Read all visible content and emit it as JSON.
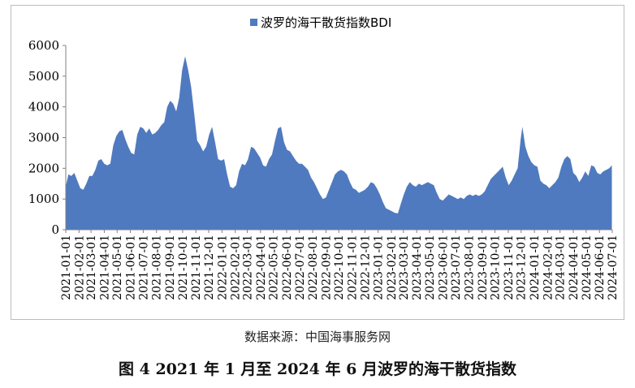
{
  "source_text": "数据来源：中国海事服务网",
  "caption": "图 4  2021 年 1 月至 2024 年 6 月波罗的海干散货指数",
  "colors": {
    "area": "#4f7ac0",
    "axis": "#808080",
    "text": "#000000"
  },
  "chart_data": {
    "type": "area",
    "ylim": [
      0,
      6000
    ],
    "yticks": [
      0,
      1000,
      2000,
      3000,
      4000,
      5000,
      6000
    ],
    "xlabel": "",
    "ylabel": "",
    "legend": {
      "position": "top-center",
      "entries": [
        "波罗的海干散货指数BDI"
      ]
    },
    "x_tick_labels": [
      "2021-01-01",
      "2021-02-01",
      "2021-03-01",
      "2021-04-01",
      "2021-05-01",
      "2021-06-01",
      "2021-07-01",
      "2021-08-01",
      "2021-09-01",
      "2021-10-01",
      "2021-11-01",
      "2021-12-01",
      "2022-01-01",
      "2022-02-01",
      "2022-03-01",
      "2022-04-01",
      "2022-05-01",
      "2022-06-01",
      "2022-07-01",
      "2022-08-01",
      "2022-09-01",
      "2022-10-01",
      "2022-11-01",
      "2022-12-01",
      "2023-01-01",
      "2023-02-01",
      "2023-03-01",
      "2023-04-01",
      "2023-05-01",
      "2023-06-01",
      "2023-07-01",
      "2023-08-01",
      "2023-09-01",
      "2023-10-01",
      "2023-11-01",
      "2023-12-01",
      "2024-01-01",
      "2024-02-01",
      "2024-03-01",
      "2024-04-01",
      "2024-05-01",
      "2024-06-01",
      "2024-07-01"
    ],
    "series": [
      {
        "name": "波罗的海干散货指数BDI",
        "color": "#4f7ac0",
        "points": [
          [
            "2021-01-01",
            1400
          ],
          [
            "2021-01-07",
            1800
          ],
          [
            "2021-01-14",
            1750
          ],
          [
            "2021-01-21",
            1850
          ],
          [
            "2021-01-28",
            1600
          ],
          [
            "2021-02-04",
            1350
          ],
          [
            "2021-02-11",
            1300
          ],
          [
            "2021-02-18",
            1500
          ],
          [
            "2021-02-25",
            1750
          ],
          [
            "2021-03-04",
            1750
          ],
          [
            "2021-03-11",
            1950
          ],
          [
            "2021-03-18",
            2250
          ],
          [
            "2021-03-25",
            2300
          ],
          [
            "2021-04-01",
            2150
          ],
          [
            "2021-04-08",
            2100
          ],
          [
            "2021-04-15",
            2150
          ],
          [
            "2021-04-22",
            2750
          ],
          [
            "2021-04-29",
            3050
          ],
          [
            "2021-05-06",
            3200
          ],
          [
            "2021-05-13",
            3250
          ],
          [
            "2021-05-20",
            2950
          ],
          [
            "2021-05-27",
            2700
          ],
          [
            "2021-06-03",
            2500
          ],
          [
            "2021-06-10",
            2450
          ],
          [
            "2021-06-17",
            3100
          ],
          [
            "2021-06-24",
            3350
          ],
          [
            "2021-07-01",
            3300
          ],
          [
            "2021-07-08",
            3150
          ],
          [
            "2021-07-15",
            3300
          ],
          [
            "2021-07-22",
            3100
          ],
          [
            "2021-07-29",
            3150
          ],
          [
            "2021-08-05",
            3250
          ],
          [
            "2021-08-12",
            3400
          ],
          [
            "2021-08-19",
            3500
          ],
          [
            "2021-08-26",
            4000
          ],
          [
            "2021-09-02",
            4200
          ],
          [
            "2021-09-09",
            4100
          ],
          [
            "2021-09-16",
            3850
          ],
          [
            "2021-09-23",
            4300
          ],
          [
            "2021-09-30",
            5200
          ],
          [
            "2021-10-07",
            5650
          ],
          [
            "2021-10-14",
            5200
          ],
          [
            "2021-10-21",
            4650
          ],
          [
            "2021-10-28",
            3800
          ],
          [
            "2021-11-04",
            2900
          ],
          [
            "2021-11-11",
            2750
          ],
          [
            "2021-11-18",
            2550
          ],
          [
            "2021-11-25",
            2700
          ],
          [
            "2021-12-02",
            3100
          ],
          [
            "2021-12-09",
            3350
          ],
          [
            "2021-12-16",
            2850
          ],
          [
            "2021-12-23",
            2300
          ],
          [
            "2021-12-30",
            2250
          ],
          [
            "2022-01-06",
            2300
          ],
          [
            "2022-01-13",
            1800
          ],
          [
            "2022-01-20",
            1400
          ],
          [
            "2022-01-27",
            1350
          ],
          [
            "2022-02-03",
            1450
          ],
          [
            "2022-02-10",
            1900
          ],
          [
            "2022-02-17",
            2150
          ],
          [
            "2022-02-24",
            2100
          ],
          [
            "2022-03-03",
            2300
          ],
          [
            "2022-03-10",
            2700
          ],
          [
            "2022-03-17",
            2650
          ],
          [
            "2022-03-24",
            2500
          ],
          [
            "2022-03-31",
            2350
          ],
          [
            "2022-04-07",
            2100
          ],
          [
            "2022-04-14",
            2050
          ],
          [
            "2022-04-21",
            2300
          ],
          [
            "2022-04-28",
            2450
          ],
          [
            "2022-05-05",
            2900
          ],
          [
            "2022-05-12",
            3300
          ],
          [
            "2022-05-19",
            3350
          ],
          [
            "2022-05-26",
            2850
          ],
          [
            "2022-06-02",
            2600
          ],
          [
            "2022-06-09",
            2550
          ],
          [
            "2022-06-16",
            2400
          ],
          [
            "2022-06-23",
            2250
          ],
          [
            "2022-06-30",
            2150
          ],
          [
            "2022-07-07",
            2150
          ],
          [
            "2022-07-14",
            2050
          ],
          [
            "2022-07-21",
            1950
          ],
          [
            "2022-07-28",
            1700
          ],
          [
            "2022-08-04",
            1550
          ],
          [
            "2022-08-11",
            1350
          ],
          [
            "2022-08-18",
            1150
          ],
          [
            "2022-08-25",
            1000
          ],
          [
            "2022-09-01",
            1050
          ],
          [
            "2022-09-08",
            1300
          ],
          [
            "2022-09-15",
            1550
          ],
          [
            "2022-09-22",
            1800
          ],
          [
            "2022-09-29",
            1900
          ],
          [
            "2022-10-06",
            1950
          ],
          [
            "2022-10-13",
            1900
          ],
          [
            "2022-10-20",
            1800
          ],
          [
            "2022-10-27",
            1550
          ],
          [
            "2022-11-03",
            1350
          ],
          [
            "2022-11-10",
            1300
          ],
          [
            "2022-11-17",
            1200
          ],
          [
            "2022-11-24",
            1250
          ],
          [
            "2022-12-01",
            1300
          ],
          [
            "2022-12-08",
            1400
          ],
          [
            "2022-12-15",
            1550
          ],
          [
            "2022-12-22",
            1500
          ],
          [
            "2022-12-29",
            1350
          ],
          [
            "2023-01-05",
            1150
          ],
          [
            "2023-01-12",
            900
          ],
          [
            "2023-01-19",
            700
          ],
          [
            "2023-01-26",
            650
          ],
          [
            "2023-02-02",
            600
          ],
          [
            "2023-02-09",
            550
          ],
          [
            "2023-02-16",
            530
          ],
          [
            "2023-02-23",
            850
          ],
          [
            "2023-03-02",
            1150
          ],
          [
            "2023-03-09",
            1400
          ],
          [
            "2023-03-16",
            1550
          ],
          [
            "2023-03-23",
            1450
          ],
          [
            "2023-03-30",
            1400
          ],
          [
            "2023-04-06",
            1500
          ],
          [
            "2023-04-13",
            1450
          ],
          [
            "2023-04-20",
            1500
          ],
          [
            "2023-04-27",
            1550
          ],
          [
            "2023-05-04",
            1500
          ],
          [
            "2023-05-11",
            1450
          ],
          [
            "2023-05-18",
            1200
          ],
          [
            "2023-05-25",
            1000
          ],
          [
            "2023-06-01",
            950
          ],
          [
            "2023-06-08",
            1050
          ],
          [
            "2023-06-15",
            1150
          ],
          [
            "2023-06-22",
            1100
          ],
          [
            "2023-06-29",
            1050
          ],
          [
            "2023-07-06",
            1000
          ],
          [
            "2023-07-13",
            1050
          ],
          [
            "2023-07-20",
            1000
          ],
          [
            "2023-07-27",
            1100
          ],
          [
            "2023-08-03",
            1150
          ],
          [
            "2023-08-10",
            1100
          ],
          [
            "2023-08-17",
            1150
          ],
          [
            "2023-08-24",
            1100
          ],
          [
            "2023-08-31",
            1150
          ],
          [
            "2023-09-07",
            1250
          ],
          [
            "2023-09-14",
            1450
          ],
          [
            "2023-09-21",
            1650
          ],
          [
            "2023-09-28",
            1750
          ],
          [
            "2023-10-05",
            1850
          ],
          [
            "2023-10-12",
            1950
          ],
          [
            "2023-10-19",
            2050
          ],
          [
            "2023-10-26",
            1700
          ],
          [
            "2023-11-02",
            1450
          ],
          [
            "2023-11-09",
            1600
          ],
          [
            "2023-11-16",
            1800
          ],
          [
            "2023-11-23",
            2000
          ],
          [
            "2023-11-30",
            2950
          ],
          [
            "2023-12-04",
            3350
          ],
          [
            "2023-12-11",
            2700
          ],
          [
            "2023-12-18",
            2400
          ],
          [
            "2023-12-25",
            2200
          ],
          [
            "2024-01-01",
            2100
          ],
          [
            "2024-01-08",
            2050
          ],
          [
            "2024-01-15",
            1600
          ],
          [
            "2024-01-22",
            1500
          ],
          [
            "2024-01-29",
            1450
          ],
          [
            "2024-02-05",
            1350
          ],
          [
            "2024-02-12",
            1450
          ],
          [
            "2024-02-19",
            1550
          ],
          [
            "2024-02-26",
            1700
          ],
          [
            "2024-03-04",
            2050
          ],
          [
            "2024-03-11",
            2300
          ],
          [
            "2024-03-18",
            2400
          ],
          [
            "2024-03-25",
            2300
          ],
          [
            "2024-04-01",
            1850
          ],
          [
            "2024-04-08",
            1750
          ],
          [
            "2024-04-15",
            1550
          ],
          [
            "2024-04-22",
            1700
          ],
          [
            "2024-04-29",
            1900
          ],
          [
            "2024-05-06",
            1750
          ],
          [
            "2024-05-13",
            2100
          ],
          [
            "2024-05-20",
            2050
          ],
          [
            "2024-05-27",
            1850
          ],
          [
            "2024-06-03",
            1800
          ],
          [
            "2024-06-10",
            1900
          ],
          [
            "2024-06-17",
            1950
          ],
          [
            "2024-06-24",
            2000
          ],
          [
            "2024-06-30",
            2100
          ]
        ]
      }
    ]
  }
}
